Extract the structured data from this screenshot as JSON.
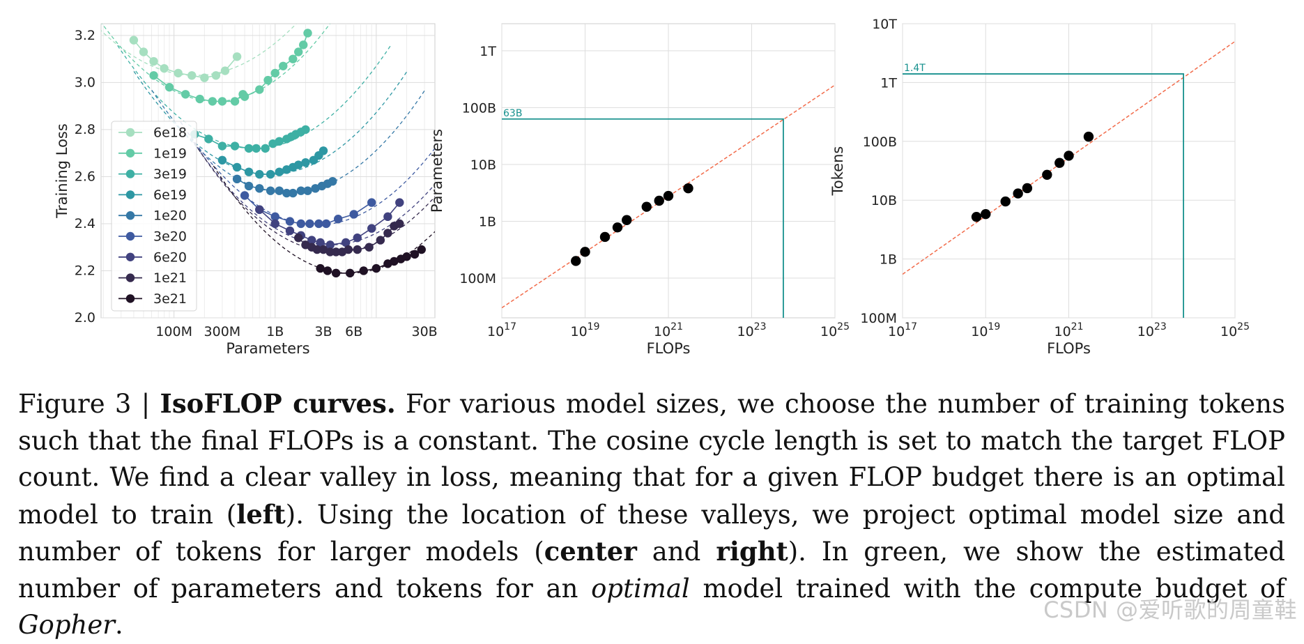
{
  "chart_data": [
    {
      "type": "line",
      "title": "",
      "xlabel": "Parameters",
      "ylabel": "Training Loss",
      "x_scale": "log",
      "xlim": [
        19000000,
        38000000000
      ],
      "ylim": [
        2.0,
        3.25
      ],
      "yticks": [
        2.0,
        2.2,
        2.4,
        2.6,
        2.8,
        3.0,
        3.2
      ],
      "ytick_labels": [
        "2.0",
        "2.2",
        "2.4",
        "2.6",
        "2.8",
        "3.0",
        "3.2"
      ],
      "xticks": [
        100000000,
        300000000,
        1000000000,
        3000000000,
        6000000000,
        30000000000
      ],
      "xtick_labels": [
        "100M",
        "300M",
        "1B",
        "3B",
        "6B",
        "30B"
      ],
      "grid": true,
      "legend_position": "left",
      "series": [
        {
          "name": "6e18",
          "color": "#a6dfc0",
          "opt_params": 162000000,
          "min_loss": 3.03,
          "curvature": 0.22,
          "x": [
            40000000,
            50000000,
            63000000,
            80000000,
            110000000,
            150000000,
            200000000,
            260000000,
            320000000,
            420000000
          ],
          "y": [
            3.18,
            3.13,
            3.09,
            3.06,
            3.04,
            3.03,
            3.02,
            3.03,
            3.05,
            3.11
          ]
        },
        {
          "name": "1e19",
          "color": "#63cba6",
          "opt_params": 260000000,
          "min_loss": 2.92,
          "curvature": 0.26,
          "x": [
            63000000,
            90000000,
            130000000,
            180000000,
            240000000,
            300000000,
            400000000,
            480000000,
            500000000,
            700000000,
            850000000,
            1000000000,
            1200000000,
            1500000000,
            1700000000,
            1900000000,
            2100000000
          ],
          "y": [
            3.03,
            2.98,
            2.95,
            2.93,
            2.92,
            2.92,
            2.92,
            2.95,
            2.94,
            2.97,
            3.01,
            3.04,
            3.07,
            3.1,
            3.13,
            3.16,
            3.21
          ]
        },
        {
          "name": "3e19",
          "color": "#3eb0a4",
          "opt_params": 620000000,
          "min_loss": 2.72,
          "curvature": 0.24,
          "x": [
            160000000,
            220000000,
            300000000,
            400000000,
            550000000,
            650000000,
            800000000,
            950000000,
            1100000000,
            1300000000,
            1450000000,
            1600000000,
            1800000000,
            2000000000
          ],
          "y": [
            2.78,
            2.76,
            2.73,
            2.73,
            2.72,
            2.72,
            2.72,
            2.74,
            2.75,
            2.76,
            2.77,
            2.78,
            2.79,
            2.8
          ]
        },
        {
          "name": "6e19",
          "color": "#2d97a3",
          "opt_params": 900000000,
          "min_loss": 2.61,
          "curvature": 0.24,
          "x": [
            300000000,
            420000000,
            550000000,
            700000000,
            900000000,
            1100000000,
            1300000000,
            1500000000,
            1700000000,
            2000000000,
            2400000000,
            2700000000,
            3000000000
          ],
          "y": [
            2.67,
            2.64,
            2.62,
            2.61,
            2.61,
            2.62,
            2.63,
            2.64,
            2.65,
            2.66,
            2.67,
            2.69,
            2.71
          ]
        },
        {
          "name": "1e20",
          "color": "#3578a6",
          "opt_params": 1350000000,
          "min_loss": 2.53,
          "curvature": 0.24,
          "x": [
            420000000,
            550000000,
            700000000,
            900000000,
            1100000000,
            1300000000,
            1500000000,
            1800000000,
            2100000000,
            2500000000,
            2900000000,
            3300000000,
            3700000000
          ],
          "y": [
            2.59,
            2.56,
            2.55,
            2.54,
            2.54,
            2.53,
            2.53,
            2.54,
            2.54,
            2.55,
            2.56,
            2.57,
            2.58
          ]
        },
        {
          "name": "3e20",
          "color": "#3e5aa0",
          "opt_params": 2600000000,
          "min_loss": 2.395,
          "curvature": 0.24,
          "x": [
            500000000,
            700000000,
            1000000000,
            1400000000,
            1800000000,
            2200000000,
            2700000000,
            3200000000,
            4200000000,
            6000000000,
            9000000000
          ],
          "y": [
            2.52,
            2.46,
            2.43,
            2.41,
            2.4,
            2.4,
            2.4,
            2.4,
            2.42,
            2.44,
            2.49
          ]
        },
        {
          "name": "6e20",
          "color": "#41427f",
          "opt_params": 3500000000,
          "min_loss": 2.31,
          "curvature": 0.24,
          "x": [
            700000000,
            1000000000,
            1400000000,
            1800000000,
            2300000000,
            2800000000,
            3500000000,
            5000000000,
            6500000000,
            9000000000,
            13000000000,
            17000000000
          ],
          "y": [
            2.46,
            2.4,
            2.37,
            2.35,
            2.33,
            2.32,
            2.31,
            2.32,
            2.34,
            2.38,
            2.43,
            2.49
          ]
        },
        {
          "name": "1e21",
          "color": "#352a4e",
          "opt_params": 3900000000,
          "min_loss": 2.28,
          "curvature": 0.24,
          "x": [
            1700000000,
            2000000000,
            2300000000,
            2600000000,
            3000000000,
            3500000000,
            4000000000,
            4600000000,
            5300000000,
            6500000000,
            8500000000,
            11000000000,
            13000000000,
            15000000000,
            17000000000
          ],
          "y": [
            2.34,
            2.31,
            2.3,
            2.29,
            2.29,
            2.28,
            2.28,
            2.28,
            2.29,
            2.29,
            2.3,
            2.33,
            2.36,
            2.39,
            2.4
          ]
        },
        {
          "name": "3e21",
          "color": "#1f1124",
          "opt_params": 5500000000,
          "min_loss": 2.19,
          "curvature": 0.25,
          "x": [
            2800000000,
            3300000000,
            4000000000,
            5500000000,
            7500000000,
            10000000000,
            13000000000,
            15000000000,
            17500000000,
            20000000000,
            24000000000,
            28000000000
          ],
          "y": [
            2.21,
            2.2,
            2.19,
            2.19,
            2.2,
            2.21,
            2.23,
            2.24,
            2.25,
            2.26,
            2.27,
            2.29
          ]
        }
      ]
    },
    {
      "type": "scatter",
      "xlabel": "FLOPs",
      "ylabel": "Parameters",
      "x_scale": "log",
      "y_scale": "log",
      "xlim": [
        1e+17,
        1e+25
      ],
      "ylim": [
        20000000,
        3000000000000
      ],
      "xtick_mantissa": "10",
      "xtick_exponents": [
        "17",
        "19",
        "21",
        "23",
        "25"
      ],
      "yticks": [
        100000000,
        1000000000,
        10000000000,
        100000000000,
        1000000000000
      ],
      "ytick_labels": [
        "100M",
        "1B",
        "10B",
        "100B",
        "1T"
      ],
      "grid": true,
      "points_flops": [
        6e+18,
        1e+19,
        3e+19,
        6e+19,
        1e+20,
        3e+20,
        6e+20,
        1e+21,
        3e+21
      ],
      "points_values": [
        200000000,
        290000000,
        530000000,
        780000000,
        1050000000,
        1800000000,
        2300000000,
        2800000000,
        3800000000
      ],
      "fit_line": {
        "color": "#f26b4a",
        "x": [
          1e+17,
          1e+25
        ],
        "y": [
          30000000,
          250000000000
        ]
      },
      "gopher_flops": 5.76e+23,
      "gopher_value": 63000000000,
      "gopher_label": "63B",
      "gopher_color": "#17918e"
    },
    {
      "type": "scatter",
      "xlabel": "FLOPs",
      "ylabel": "Tokens",
      "x_scale": "log",
      "y_scale": "log",
      "xlim": [
        1e+17,
        1e+25
      ],
      "ylim": [
        100000000,
        10000000000000
      ],
      "xtick_mantissa": "10",
      "xtick_exponents": [
        "17",
        "19",
        "21",
        "23",
        "25"
      ],
      "yticks": [
        100000000,
        1000000000,
        10000000000,
        100000000000,
        1000000000000,
        10000000000000
      ],
      "ytick_labels": [
        "100M",
        "1B",
        "10B",
        "100B",
        "1T",
        "10T"
      ],
      "grid": true,
      "points_flops": [
        6e+18,
        1e+19,
        3e+19,
        6e+19,
        1e+20,
        3e+20,
        6e+20,
        1e+21,
        3e+21
      ],
      "points_values": [
        5200000000,
        5800000000,
        9500000000,
        13000000000,
        16000000000,
        27000000000,
        43000000000,
        57000000000,
        120000000000
      ],
      "fit_line": {
        "color": "#f26b4a",
        "x": [
          1e+17,
          1e+25
        ],
        "y": [
          550000000,
          5000000000000
        ]
      },
      "gopher_flops": 5.76e+23,
      "gopher_value": 1400000000000,
      "gopher_label": "1.4T",
      "gopher_color": "#17918e"
    }
  ],
  "caption": {
    "prefix": "Figure 3 | ",
    "title": "IsoFLOP curves.",
    "t1": " For various model sizes, we choose the number of training tokens such that the final FLOPs is a constant. The cosine cycle length is set to match the target FLOP count. We find a clear valley in loss, meaning that for a given FLOP budget there is an optimal model to train (",
    "b_left": "left",
    "t2": "). Using the location of these valleys, we project optimal model size and number of tokens for larger models (",
    "b_center": "center",
    "t3": " and ",
    "b_right": "right",
    "t4": "). In green, we show the estimated number of parameters and tokens for an ",
    "i_optimal": "optimal",
    "t5": " model trained with the compute budget of ",
    "i_gopher": "Gopher",
    "t6": "."
  },
  "watermark": "CSDN @爱听歌的周童鞋"
}
